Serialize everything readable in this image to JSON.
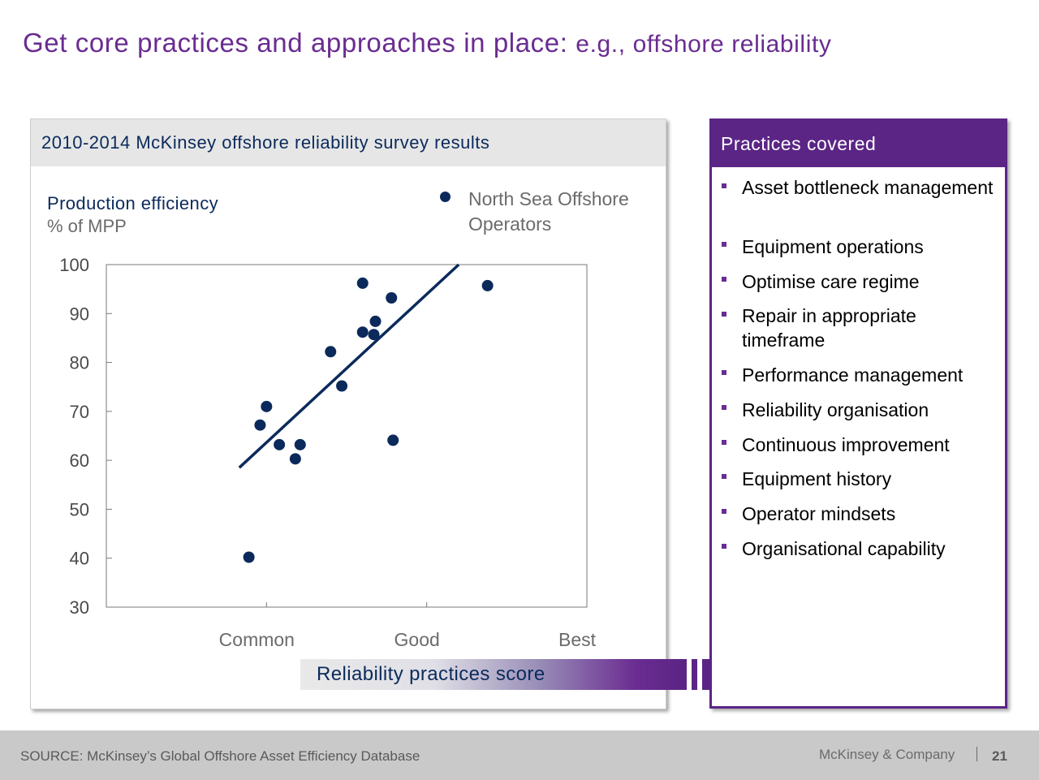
{
  "title": {
    "main": "Get core practices and approaches in place:",
    "sub": "e.g., offshore reliability"
  },
  "left_panel": {
    "header": "2010-2014 McKinsey offshore reliability survey results"
  },
  "chart_data": {
    "type": "scatter",
    "ylabel": "Production efficiency",
    "yunit": "% of MPP",
    "xlabel": "Reliability practices score",
    "ylim": [
      30,
      100
    ],
    "yticks": [
      "100",
      "90",
      "80",
      "70",
      "60",
      "50",
      "40",
      "30"
    ],
    "ytick_values": [
      100,
      90,
      80,
      70,
      60,
      50,
      40,
      30
    ],
    "xlim": [
      0,
      3
    ],
    "xtick_labels": [
      "Common",
      "Good",
      "Best"
    ],
    "xtick_values": [
      1,
      2,
      3
    ],
    "grid": false,
    "legend": "top-right",
    "series": [
      {
        "name": "North Sea Offshore Operators",
        "color": "#0b2a5b",
        "points": [
          {
            "x": 0.89,
            "y": 40.2
          },
          {
            "x": 0.96,
            "y": 67.2
          },
          {
            "x": 1.0,
            "y": 71.0
          },
          {
            "x": 1.08,
            "y": 63.2
          },
          {
            "x": 1.18,
            "y": 60.3
          },
          {
            "x": 1.21,
            "y": 63.2
          },
          {
            "x": 1.4,
            "y": 82.2
          },
          {
            "x": 1.47,
            "y": 75.2
          },
          {
            "x": 1.6,
            "y": 96.2
          },
          {
            "x": 1.6,
            "y": 86.2
          },
          {
            "x": 1.67,
            "y": 85.7
          },
          {
            "x": 1.68,
            "y": 88.4
          },
          {
            "x": 1.78,
            "y": 93.2
          },
          {
            "x": 1.79,
            "y": 64.1
          },
          {
            "x": 2.38,
            "y": 95.7
          }
        ]
      }
    ],
    "trendline": {
      "x": [
        0.83,
        2.2
      ],
      "y": [
        58.5,
        100
      ]
    }
  },
  "right_panel": {
    "header": "Practices covered",
    "items": [
      "Asset bottleneck management",
      "Equipment operations",
      "Optimise care regime",
      "Repair in appropriate timeframe",
      "Performance management",
      "Reliability organisation",
      "Continuous improvement",
      "Equipment history",
      "Operator mindsets",
      "Organisational capability"
    ]
  },
  "footer": {
    "source": "SOURCE: McKinsey’s Global Offshore Asset Efficiency Database",
    "brand": "McKinsey & Company",
    "page_number": "21"
  }
}
